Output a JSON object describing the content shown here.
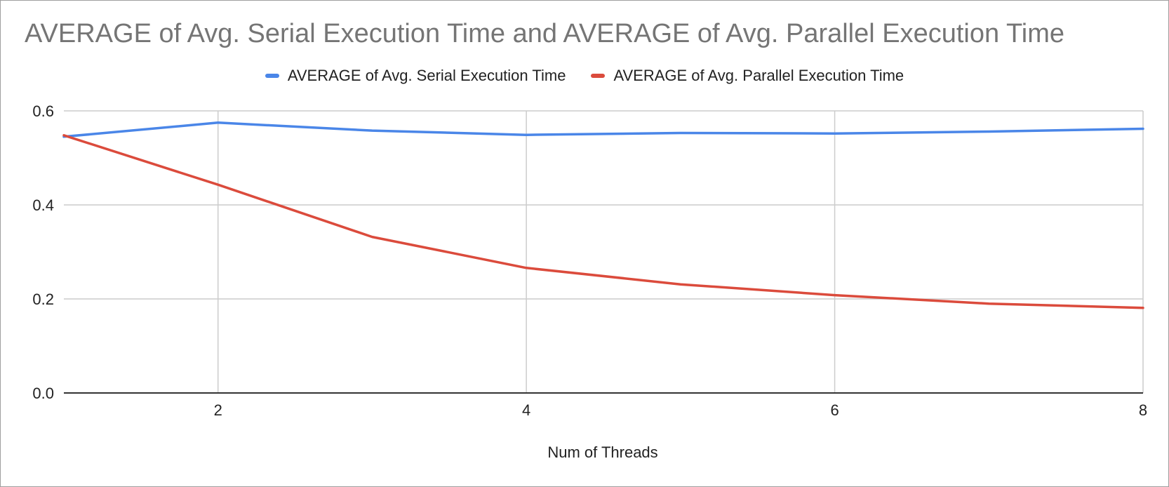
{
  "chart_data": {
    "type": "line",
    "title": "AVERAGE of Avg. Serial Execution Time and AVERAGE of Avg. Parallel Execution Time",
    "xlabel": "Num of Threads",
    "ylabel": "",
    "x": [
      1,
      2,
      3,
      4,
      5,
      6,
      7,
      8
    ],
    "xlim": [
      1,
      8
    ],
    "ylim": [
      0,
      0.6
    ],
    "x_ticks": [
      2,
      4,
      6,
      8
    ],
    "y_ticks": [
      0,
      0.2,
      0.4,
      0.6
    ],
    "x_tick_labels": [
      "2",
      "4",
      "6",
      "8"
    ],
    "y_tick_labels": [
      "0.0",
      "0.2",
      "0.4",
      "0.6"
    ],
    "grid": true,
    "legend_position": "top",
    "series": [
      {
        "name": "AVERAGE of Avg. Serial Execution Time",
        "color": "#4a86e8",
        "values": [
          0.545,
          0.575,
          0.558,
          0.549,
          0.553,
          0.552,
          0.556,
          0.562
        ]
      },
      {
        "name": "AVERAGE of Avg. Parallel Execution Time",
        "color": "#db4b3c",
        "values": [
          0.548,
          0.443,
          0.332,
          0.266,
          0.231,
          0.208,
          0.19,
          0.181
        ]
      }
    ]
  }
}
